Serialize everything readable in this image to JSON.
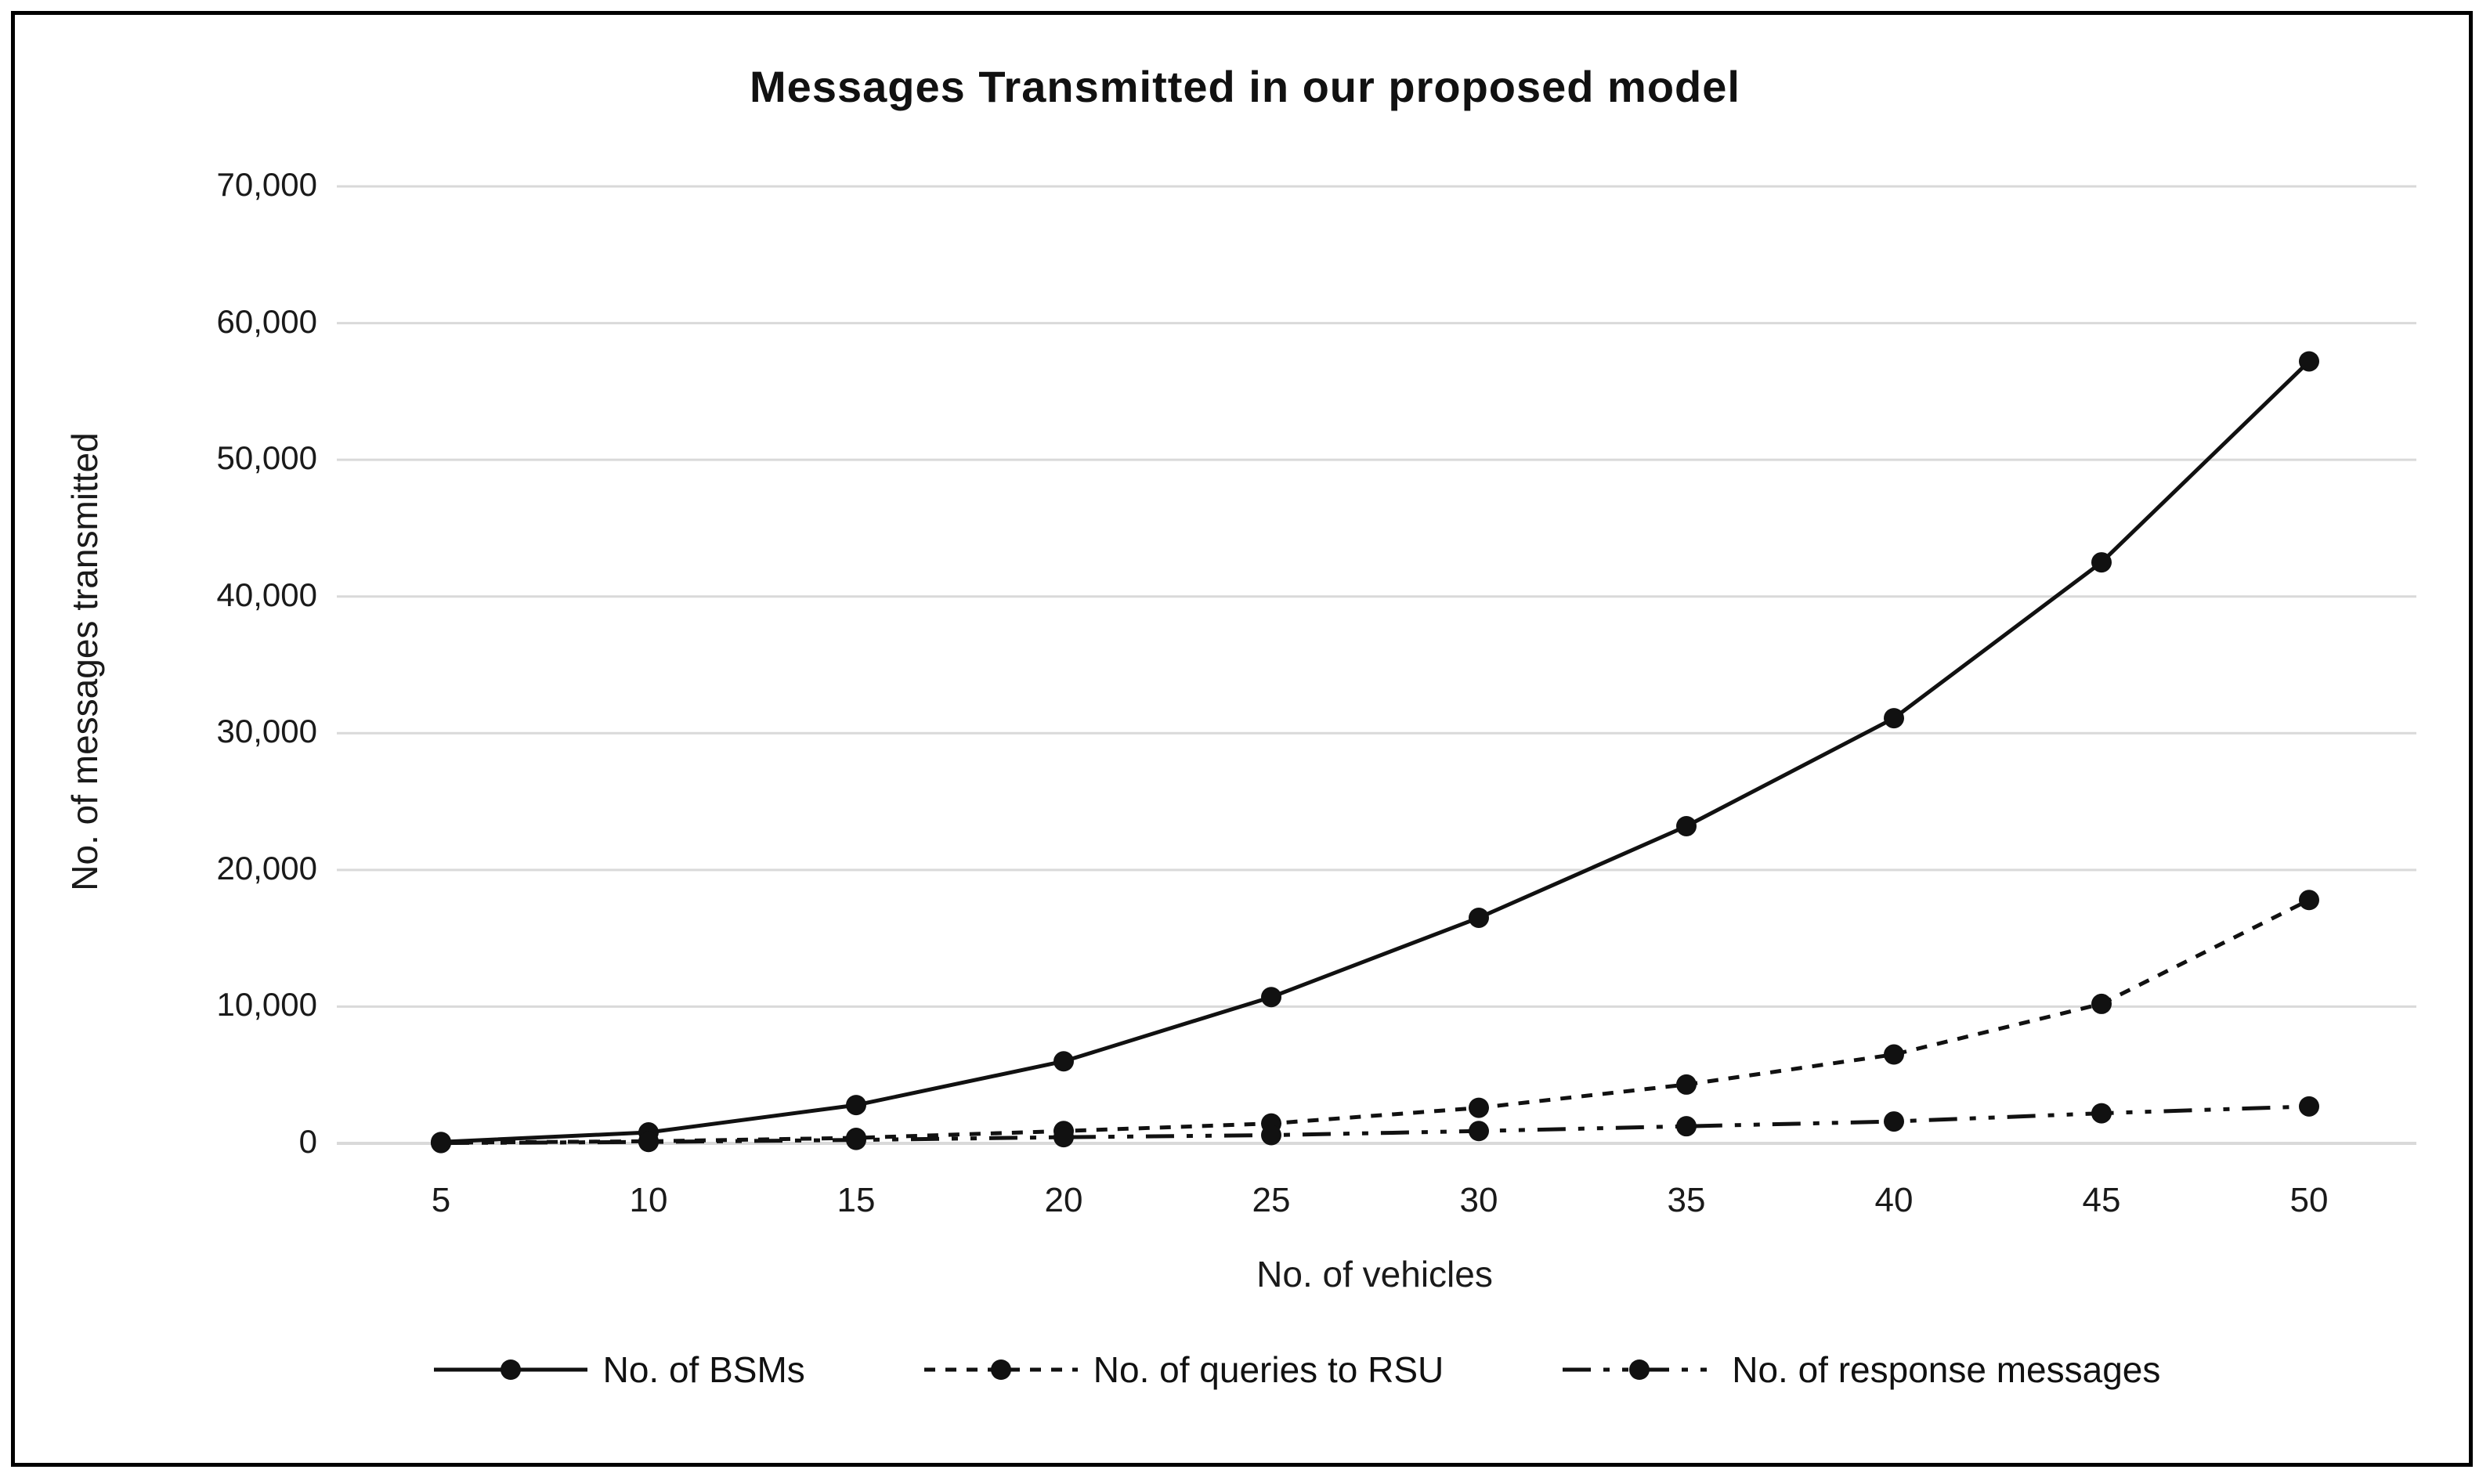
{
  "chart_data": {
    "type": "line",
    "title": "Messages Transmitted in our proposed model",
    "xlabel": "No. of vehicles",
    "ylabel": "No. of messages transmitted",
    "categories": [
      5,
      10,
      15,
      20,
      25,
      30,
      35,
      40,
      45,
      50
    ],
    "series": [
      {
        "name": "No. of BSMs",
        "line_style": "solid",
        "marker": "circle",
        "values": [
          100,
          800,
          2800,
          6000,
          10700,
          16500,
          23200,
          31100,
          42500,
          57200
        ]
      },
      {
        "name": "No. of queries to RSU",
        "line_style": "dashed",
        "marker": "circle",
        "values": [
          50,
          150,
          400,
          900,
          1450,
          2600,
          4300,
          6500,
          10200,
          17800
        ]
      },
      {
        "name": "No. of response messages",
        "line_style": "dash-dot-dot",
        "marker": "circle",
        "values": [
          25,
          100,
          250,
          450,
          600,
          900,
          1250,
          1600,
          2200,
          2700
        ]
      }
    ],
    "ylim": [
      0,
      70000
    ],
    "ytick_step": 10000,
    "ytick_labels": [
      "0",
      "10,000",
      "20,000",
      "30,000",
      "40,000",
      "50,000",
      "60,000",
      "70,000"
    ],
    "grid": true,
    "legend_position": "bottom",
    "colors": {
      "line": "#111111",
      "grid": "#d9d9d9",
      "background": "#ffffff",
      "border": "#000000"
    }
  }
}
